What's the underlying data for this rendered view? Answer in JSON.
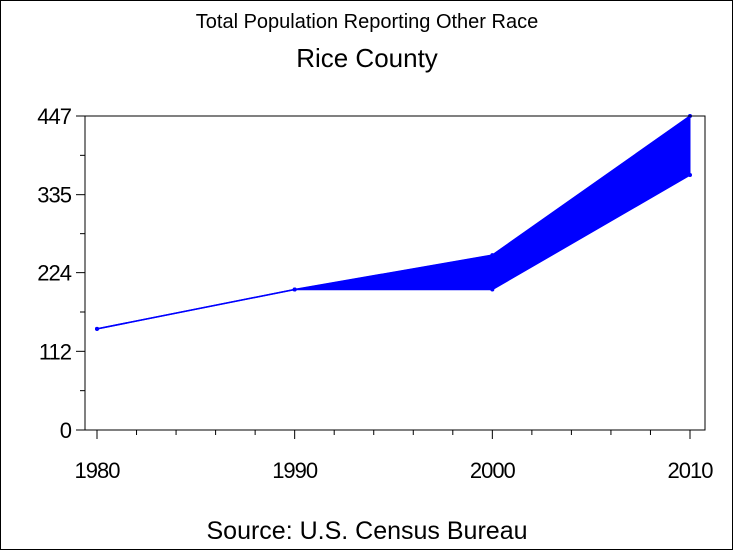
{
  "chart_data": {
    "type": "area",
    "title": "Total Population Reporting Other Race",
    "subtitle": "Rice County",
    "source": "Source: U.S. Census Bureau",
    "xlabel": "",
    "ylabel": "",
    "x": [
      1980,
      1990,
      2000,
      2010
    ],
    "x_tick_labels": [
      "1980",
      "1990",
      "2000",
      "2010"
    ],
    "xlim": [
      1980,
      2010
    ],
    "y_ticks": [
      0,
      112,
      224,
      335,
      447
    ],
    "y_tick_labels": [
      "0",
      "112",
      "224",
      "335",
      "447"
    ],
    "ylim": [
      0,
      447
    ],
    "grid": false,
    "legend": "none",
    "series": [
      {
        "values": [
          144,
          200,
          200,
          363
        ]
      },
      {
        "values": [
          144,
          200,
          249,
          447
        ]
      }
    ],
    "fill_between": true,
    "colors": {
      "band": "#0000ff",
      "axis": "#000000",
      "background": "#ffffff"
    }
  }
}
